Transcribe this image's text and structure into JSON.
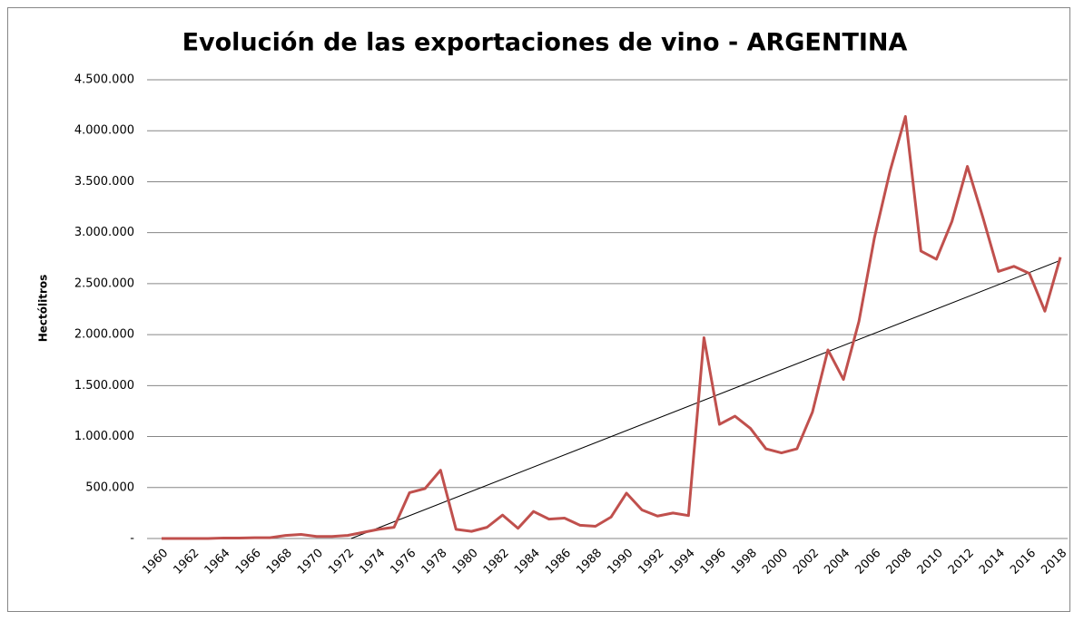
{
  "chart_data": {
    "type": "line",
    "title": "Evolución de las exportaciones de vino - ARGENTINA",
    "y_label": "Hectólitros",
    "x": [
      1960,
      1961,
      1962,
      1963,
      1964,
      1965,
      1966,
      1967,
      1968,
      1969,
      1970,
      1971,
      1972,
      1973,
      1974,
      1975,
      1976,
      1977,
      1978,
      1979,
      1980,
      1981,
      1982,
      1983,
      1984,
      1985,
      1986,
      1987,
      1988,
      1989,
      1990,
      1991,
      1992,
      1993,
      1994,
      1995,
      1996,
      1997,
      1998,
      1999,
      2000,
      2001,
      2002,
      2003,
      2004,
      2005,
      2006,
      2007,
      2008,
      2009,
      2010,
      2011,
      2012,
      2013,
      2014,
      2015,
      2016,
      2017,
      2018
    ],
    "series": [
      {
        "name": "Hectólitros",
        "color": "#c0504d",
        "values": [
          0,
          0,
          0,
          0,
          5000,
          5000,
          8000,
          8000,
          30000,
          40000,
          20000,
          20000,
          30000,
          60000,
          90000,
          110000,
          450000,
          490000,
          670000,
          90000,
          70000,
          110000,
          230000,
          100000,
          265000,
          190000,
          200000,
          130000,
          120000,
          210000,
          445000,
          280000,
          220000,
          250000,
          225000,
          1970000,
          1120000,
          1200000,
          1080000,
          880000,
          840000,
          880000,
          1240000,
          1850000,
          1560000,
          2130000,
          2950000,
          3600000,
          4140000,
          2820000,
          2740000,
          3110000,
          3650000,
          3150000,
          2620000,
          2670000,
          2600000,
          2230000,
          2760000
        ]
      }
    ],
    "trendline": true,
    "trendline_color": "#000000",
    "xlim": [
      1960,
      2018
    ],
    "xticks": [
      1960,
      1962,
      1964,
      1966,
      1968,
      1970,
      1972,
      1974,
      1976,
      1978,
      1980,
      1982,
      1984,
      1986,
      1988,
      1990,
      1992,
      1994,
      1996,
      1998,
      2000,
      2002,
      2004,
      2006,
      2008,
      2010,
      2012,
      2014,
      2016,
      2018
    ],
    "ylim": [
      0,
      4500000
    ],
    "yticks": [
      {
        "value": 0,
        "label": "-"
      },
      {
        "value": 500000,
        "label": "500.000"
      },
      {
        "value": 1000000,
        "label": "1.000.000"
      },
      {
        "value": 1500000,
        "label": "1.500.000"
      },
      {
        "value": 2000000,
        "label": "2.000.000"
      },
      {
        "value": 2500000,
        "label": "2.500.000"
      },
      {
        "value": 3000000,
        "label": "3.000.000"
      },
      {
        "value": 3500000,
        "label": "3.500.000"
      },
      {
        "value": 4000000,
        "label": "4.000.000"
      },
      {
        "value": 4500000,
        "label": "4.500.000"
      }
    ],
    "grid": true
  }
}
